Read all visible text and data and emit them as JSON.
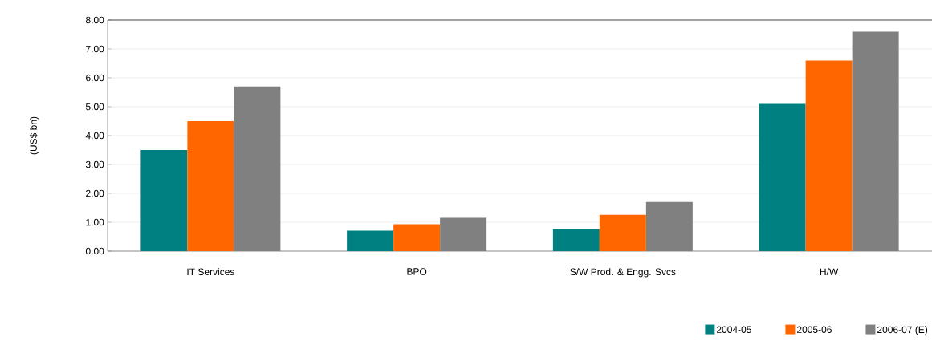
{
  "chart_data": {
    "type": "bar",
    "ylabel": "(US$ bn)",
    "categories": [
      "IT Services",
      "BPO",
      "S/W Prod. & Engg. Svcs",
      "H/W"
    ],
    "series": [
      {
        "name": "2004-05",
        "color": "#008080",
        "values": [
          3.5,
          0.71,
          0.76,
          5.1
        ]
      },
      {
        "name": "2005-06",
        "color": "#ff6600",
        "values": [
          4.5,
          0.93,
          1.26,
          6.6
        ]
      },
      {
        "name": "2006-07 (E)",
        "color": "#808080",
        "values": [
          5.7,
          1.15,
          1.7,
          7.6
        ]
      }
    ],
    "ylim": [
      0,
      8
    ],
    "yticks": [
      {
        "value": 0,
        "label": "0.00"
      },
      {
        "value": 1,
        "label": "1.00"
      },
      {
        "value": 2,
        "label": "2.00"
      },
      {
        "value": 3,
        "label": "3.00"
      },
      {
        "value": 4,
        "label": "4.00"
      },
      {
        "value": 5,
        "label": "5.00"
      },
      {
        "value": 6,
        "label": "6.00"
      },
      {
        "value": 7,
        "label": "7.00"
      },
      {
        "value": 8,
        "label": "8.00"
      }
    ],
    "grid": "y",
    "legend": "bottom right"
  }
}
